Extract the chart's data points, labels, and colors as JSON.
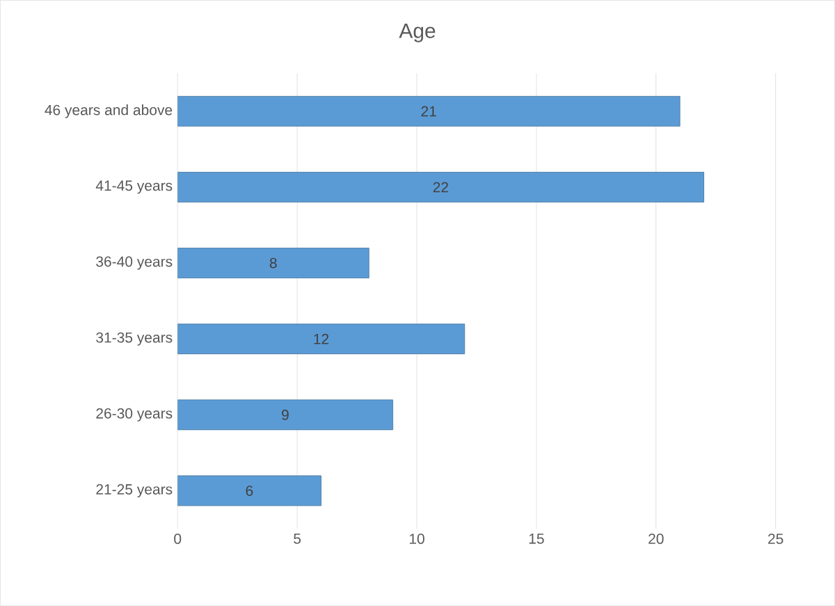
{
  "chart_data": {
    "type": "bar",
    "orientation": "horizontal",
    "title": "Age",
    "categories": [
      "46 years and above",
      "41-45 years",
      "36-40 years",
      "31-35 years",
      "26-30 years",
      "21-25 years"
    ],
    "values": [
      21,
      22,
      8,
      12,
      9,
      6
    ],
    "color": "#5b9bd5",
    "xlim": [
      0,
      25
    ],
    "xticks": [
      0,
      5,
      10,
      15,
      20,
      25
    ],
    "grid": "x",
    "data_labels": true
  }
}
